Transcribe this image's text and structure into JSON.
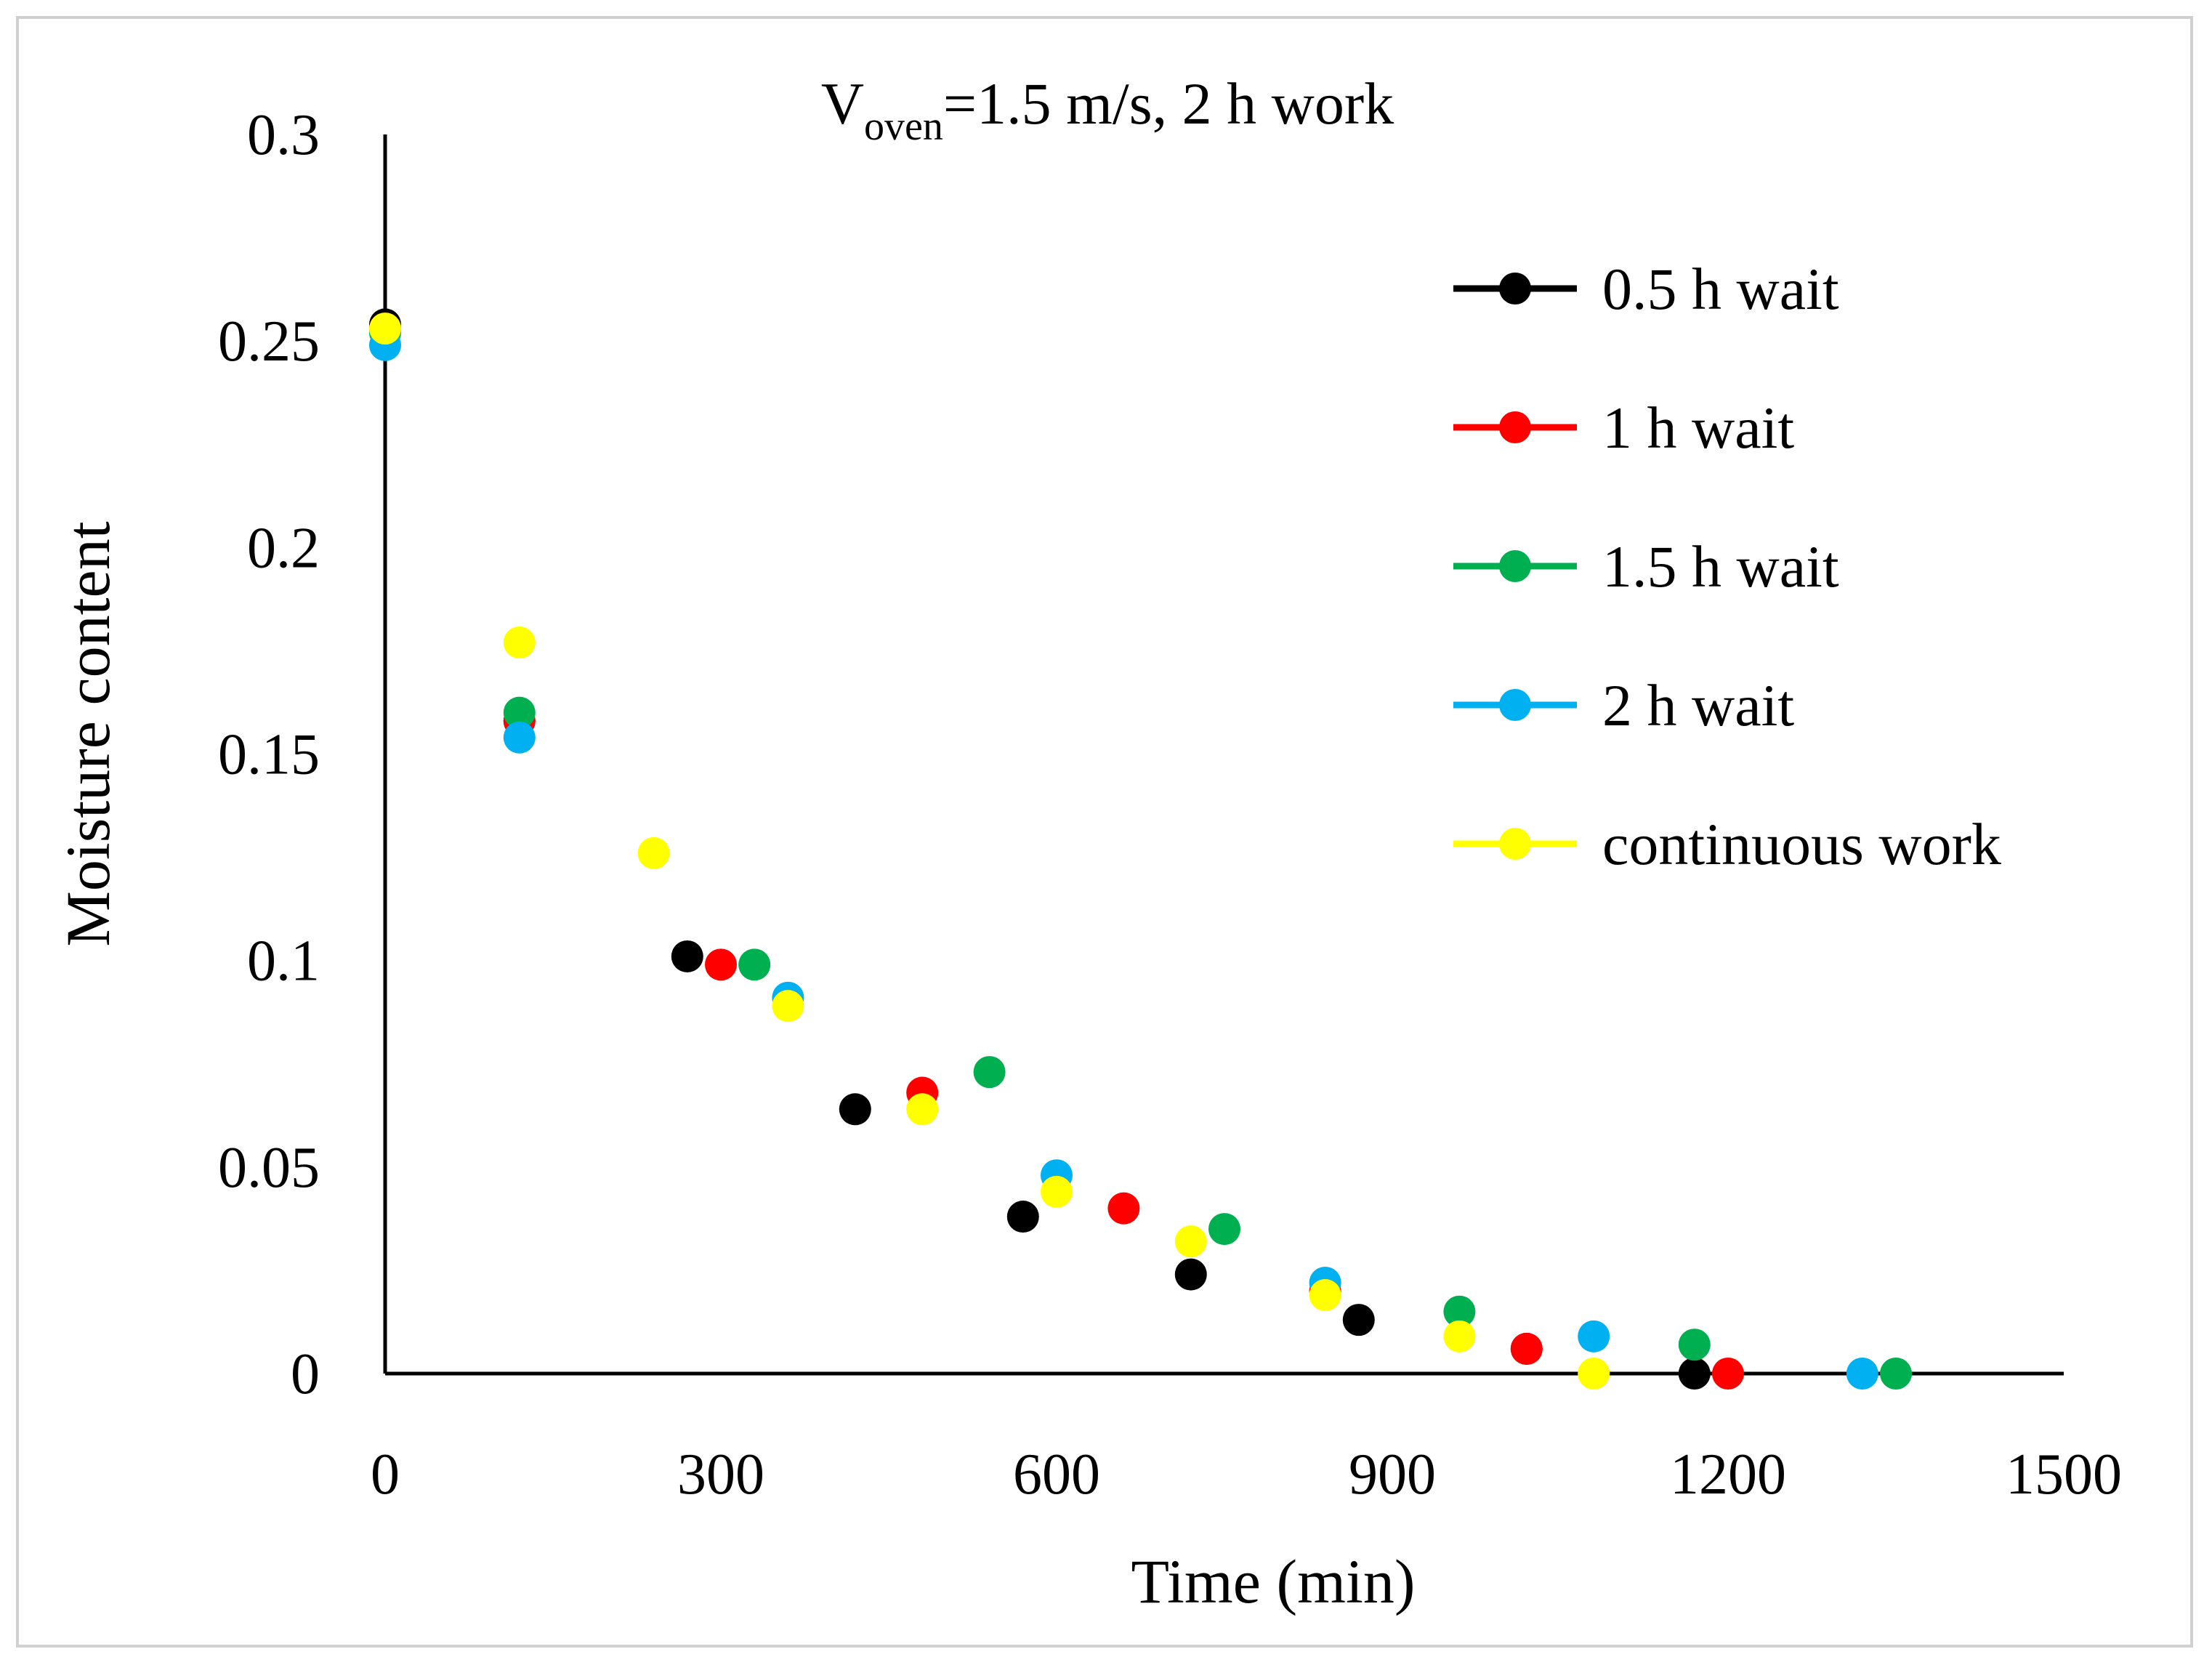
{
  "chart_data": {
    "type": "scatter",
    "title": {
      "prefix": "V",
      "subscript": "oven",
      "suffix": "=1.5 m/s, 2 h work"
    },
    "xlabel": "Time (min)",
    "ylabel": "Moisture content",
    "xlim": [
      0,
      1500
    ],
    "ylim": [
      0,
      0.3
    ],
    "x_ticks": [
      {
        "value": 0,
        "label": "0"
      },
      {
        "value": 300,
        "label": "300"
      },
      {
        "value": 600,
        "label": "600"
      },
      {
        "value": 900,
        "label": "900"
      },
      {
        "value": 1200,
        "label": "1200"
      },
      {
        "value": 1500,
        "label": "1500"
      }
    ],
    "y_ticks": [
      {
        "value": 0,
        "label": "0"
      },
      {
        "value": 0.05,
        "label": "0.05"
      },
      {
        "value": 0.1,
        "label": "0.1"
      },
      {
        "value": 0.15,
        "label": "0.15"
      },
      {
        "value": 0.2,
        "label": "0.2"
      },
      {
        "value": 0.25,
        "label": "0.25"
      },
      {
        "value": 0.3,
        "label": "0.3"
      }
    ],
    "grid": false,
    "legend_position": "top-right",
    "series": [
      {
        "name": "0.5 h wait",
        "color": "#000000",
        "points": [
          [
            0,
            0.254
          ],
          [
            120,
            0.158
          ],
          [
            270,
            0.101
          ],
          [
            420,
            0.064
          ],
          [
            570,
            0.038
          ],
          [
            720,
            0.024
          ],
          [
            870,
            0.013
          ],
          [
            1020,
            0.006
          ],
          [
            1170,
            0.0
          ]
        ]
      },
      {
        "name": "1 h wait",
        "color": "#ff0000",
        "points": [
          [
            0,
            0.253
          ],
          [
            120,
            0.158
          ],
          [
            300,
            0.099
          ],
          [
            480,
            0.068
          ],
          [
            660,
            0.04
          ],
          [
            840,
            0.02
          ],
          [
            1020,
            0.006
          ],
          [
            1200,
            0.0
          ]
        ]
      },
      {
        "name": "1.5 h wait",
        "color": "#00b050",
        "points": [
          [
            0,
            0.252
          ],
          [
            120,
            0.16
          ],
          [
            330,
            0.099
          ],
          [
            540,
            0.073
          ],
          [
            750,
            0.035
          ],
          [
            960,
            0.015
          ],
          [
            1170,
            0.007
          ],
          [
            1350,
            0.0
          ]
        ]
      },
      {
        "name": "2 h wait",
        "color": "#00b0f0",
        "points": [
          [
            0,
            0.249
          ],
          [
            120,
            0.154
          ],
          [
            360,
            0.091
          ],
          [
            600,
            0.048
          ],
          [
            840,
            0.022
          ],
          [
            1080,
            0.009
          ],
          [
            1320,
            0.0
          ]
        ]
      },
      {
        "name": "continuous work",
        "color": "#ffff00",
        "points": [
          [
            0,
            0.253
          ],
          [
            120,
            0.177
          ],
          [
            240,
            0.126
          ],
          [
            360,
            0.089
          ],
          [
            480,
            0.064
          ],
          [
            600,
            0.044
          ],
          [
            720,
            0.032
          ],
          [
            840,
            0.019
          ],
          [
            960,
            0.009
          ],
          [
            1080,
            0.0
          ]
        ]
      }
    ]
  }
}
